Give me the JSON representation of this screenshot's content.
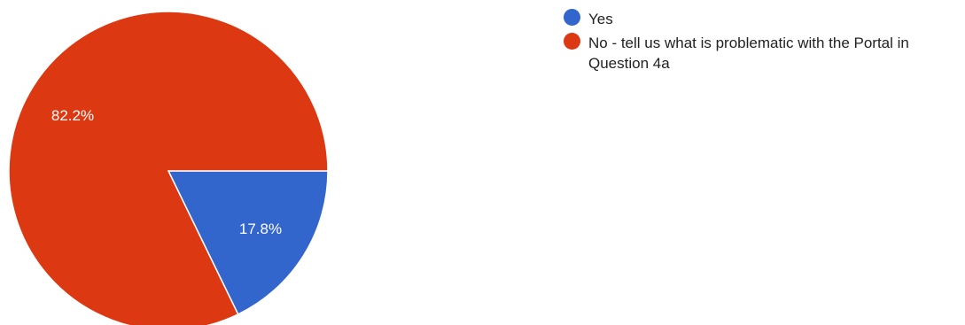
{
  "chart_data": {
    "type": "pie",
    "title": "",
    "legend_position": "right",
    "slices": [
      {
        "label": "Yes",
        "value": 17.8,
        "display": "17.8%",
        "color": "#3366cc"
      },
      {
        "label": "No - tell us what is problematic with the Portal in Question 4a",
        "value": 82.2,
        "display": "82.2%",
        "color": "#dc3912"
      }
    ]
  }
}
